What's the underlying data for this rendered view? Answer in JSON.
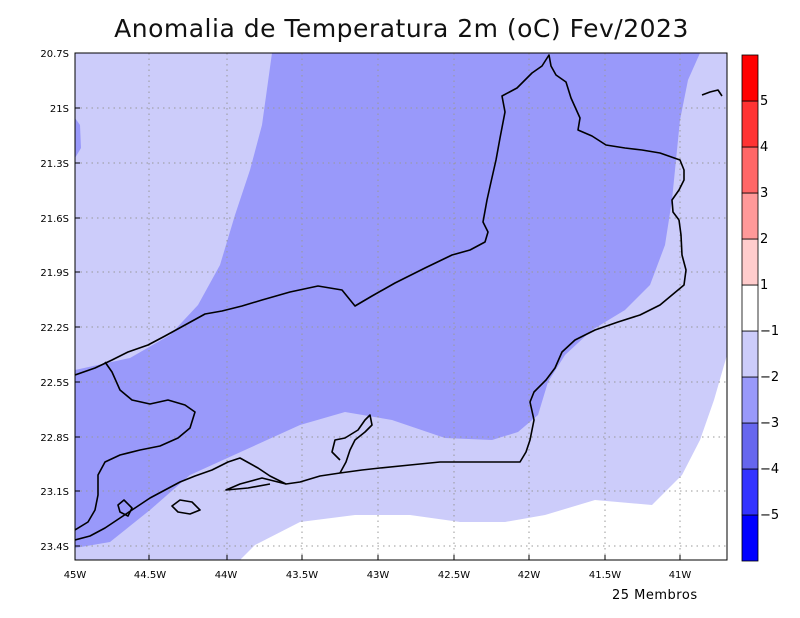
{
  "title": "Anomalia de Temperatura 2m (oC) Fev/2023",
  "footnote": "25 Membros",
  "map": {
    "lon_range": [
      -45.0,
      -40.72
    ],
    "lat_range": [
      -23.48,
      -20.7
    ],
    "lon_ticks": [
      {
        "value": -45.0,
        "label": "45W"
      },
      {
        "value": -44.5,
        "label": "44.5W"
      },
      {
        "value": -44.0,
        "label": "44W"
      },
      {
        "value": -43.5,
        "label": "43.5W"
      },
      {
        "value": -43.0,
        "label": "43W"
      },
      {
        "value": -42.5,
        "label": "42.5W"
      },
      {
        "value": -42.0,
        "label": "42W"
      },
      {
        "value": -41.5,
        "label": "41.5W"
      },
      {
        "value": -41.0,
        "label": "41W"
      }
    ],
    "lat_ticks": [
      {
        "value": -20.7,
        "label": "20.7S"
      },
      {
        "value": -21.0,
        "label": "21S"
      },
      {
        "value": -21.3,
        "label": "21.3S"
      },
      {
        "value": -21.6,
        "label": "21.6S"
      },
      {
        "value": -21.9,
        "label": "21.9S"
      },
      {
        "value": -22.2,
        "label": "22.2S"
      },
      {
        "value": -22.5,
        "label": "22.5S"
      },
      {
        "value": -22.8,
        "label": "22.8S"
      },
      {
        "value": -23.1,
        "label": "23.1S"
      },
      {
        "value": -23.4,
        "label": "23.4S"
      }
    ],
    "gridlines": "dotted"
  },
  "colorbar": {
    "bins": [
      {
        "from": -6,
        "to": -5,
        "color": "#0000ff"
      },
      {
        "from": -5,
        "to": -4,
        "color": "#3333ff"
      },
      {
        "from": -4,
        "to": -3,
        "color": "#6666ee"
      },
      {
        "from": -3,
        "to": -2,
        "color": "#9999fa"
      },
      {
        "from": -2,
        "to": -1,
        "color": "#ccccfa"
      },
      {
        "from": -1,
        "to": 1,
        "color": "#ffffff"
      },
      {
        "from": 1,
        "to": 2,
        "color": "#ffcccc"
      },
      {
        "from": 2,
        "to": 3,
        "color": "#ff9999"
      },
      {
        "from": 3,
        "to": 4,
        "color": "#ff6666"
      },
      {
        "from": 4,
        "to": 5,
        "color": "#ff3333"
      },
      {
        "from": 5,
        "to": 6,
        "color": "#ff0000"
      }
    ],
    "labels": [
      "−5",
      "−4",
      "−3",
      "−2",
      "−1",
      "1",
      "2",
      "3",
      "4",
      "5"
    ]
  }
}
